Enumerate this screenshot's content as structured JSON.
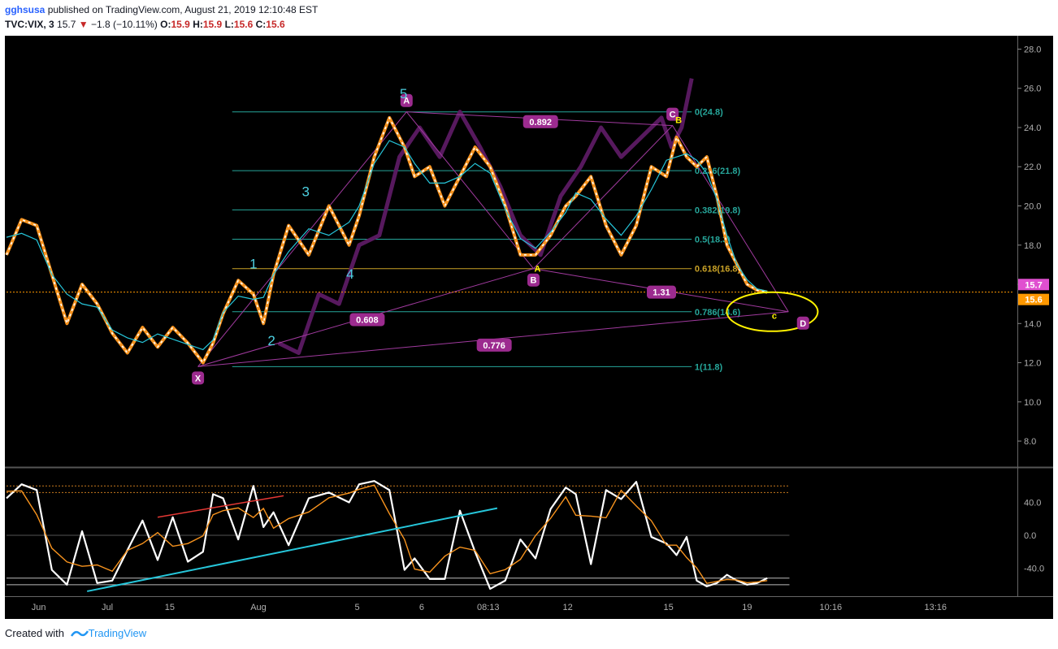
{
  "header": {
    "user": "gghsusa",
    "published": "published on TradingView.com, August 21, 2019 12:10:48 EST",
    "symbol": "TVC:VIX, 3",
    "last": "15.7",
    "change": "−1.8 (−10.11%)",
    "o_label": "O:",
    "o": "15.9",
    "h_label": "H:",
    "h": "15.9",
    "l_label": "L:",
    "l": "15.6",
    "c_label": "C:",
    "c": "15.6"
  },
  "footer": {
    "created": "Created with",
    "brand": "TradingView"
  },
  "colors": {
    "bg": "#000000",
    "up": "#ffffff",
    "down": "#f7931e",
    "ma": "#26c6da",
    "fib": "#26a69a",
    "fib618": "#c9a227",
    "projection": "#5c1a63",
    "pattern": "#a03a9e",
    "label_bg": "#9c2b8f",
    "wave": "#4dd0e1",
    "highlight": "#fff200",
    "price_tag": "#e04fd0",
    "close_tag": "#ff9800"
  },
  "chart_data": [
    {
      "type": "line",
      "name": "price",
      "title": "",
      "ylim": [
        6.8,
        28.6
      ],
      "yticks": [
        "28.0",
        "26.0",
        "24.0",
        "22.0",
        "20.0",
        "18.0",
        "16.0",
        "14.0",
        "12.0",
        "10.0",
        "8.0"
      ],
      "yticks_values": [
        28,
        26,
        24,
        22,
        20,
        18,
        16,
        14,
        12,
        10,
        8
      ],
      "xticks": [
        "Jun",
        "Jul",
        "15",
        "Aug",
        "5",
        "6",
        "08:13",
        "12",
        "15",
        "19",
        "10:16",
        "13:16"
      ],
      "xticks_pos": [
        0.032,
        0.1,
        0.162,
        0.25,
        0.348,
        0.412,
        0.478,
        0.557,
        0.657,
        0.735,
        0.818,
        0.922
      ],
      "x": [
        0.0,
        0.015,
        0.03,
        0.045,
        0.06,
        0.075,
        0.09,
        0.105,
        0.12,
        0.135,
        0.15,
        0.165,
        0.18,
        0.195,
        0.205,
        0.215,
        0.23,
        0.245,
        0.255,
        0.265,
        0.28,
        0.3,
        0.32,
        0.34,
        0.35,
        0.365,
        0.38,
        0.395,
        0.405,
        0.42,
        0.435,
        0.45,
        0.465,
        0.48,
        0.495,
        0.51,
        0.525,
        0.54,
        0.555,
        0.565,
        0.58,
        0.595,
        0.61,
        0.625,
        0.64,
        0.655,
        0.665,
        0.675,
        0.685,
        0.695,
        0.705,
        0.715,
        0.725,
        0.735,
        0.745,
        0.755
      ],
      "values": [
        17.5,
        19.3,
        19.0,
        16.5,
        14.0,
        16.0,
        15.0,
        13.5,
        12.5,
        13.8,
        12.8,
        13.8,
        13.0,
        12.0,
        13.0,
        14.5,
        16.2,
        15.5,
        14.0,
        16.5,
        19.0,
        17.5,
        20.0,
        18.0,
        19.5,
        22.5,
        24.5,
        23.0,
        21.5,
        22.0,
        20.0,
        21.5,
        23.0,
        22.0,
        20.0,
        17.5,
        17.5,
        18.5,
        20.0,
        20.5,
        21.5,
        19.0,
        17.5,
        19.0,
        22.0,
        21.5,
        23.5,
        22.5,
        22.0,
        22.5,
        20.5,
        18.0,
        17.0,
        16.0,
        15.7,
        15.6
      ],
      "projection_x": [
        0.27,
        0.29,
        0.31,
        0.33,
        0.35,
        0.37,
        0.39,
        0.41,
        0.43,
        0.45,
        0.47,
        0.49,
        0.51,
        0.53,
        0.55,
        0.57,
        0.59,
        0.61,
        0.63,
        0.65,
        0.66,
        0.67,
        0.68
      ],
      "projection_values": [
        13.0,
        12.5,
        15.5,
        15.0,
        18.0,
        18.5,
        22.5,
        24.0,
        22.5,
        24.8,
        23.0,
        21.0,
        18.5,
        17.5,
        20.5,
        22.0,
        24.0,
        22.5,
        23.5,
        24.5,
        23.0,
        24.0,
        26.5
      ],
      "fib_levels": [
        {
          "label": "1(11.8)",
          "value": 11.8
        },
        {
          "label": "0.786(14.6)",
          "value": 14.6
        },
        {
          "label": "0.618(16.8)",
          "value": 16.8
        },
        {
          "label": "0.5(18.3)",
          "value": 18.3
        },
        {
          "label": "0.382(19.8)",
          "value": 19.8
        },
        {
          "label": "0.236(21.8)",
          "value": 21.8
        },
        {
          "label": "0(24.8)",
          "value": 24.8
        }
      ],
      "harmonic_points": [
        {
          "label": "X",
          "x": 0.19,
          "value": 11.8
        },
        {
          "label": "A",
          "x": 0.397,
          "value": 24.8
        },
        {
          "label": "B",
          "x": 0.523,
          "value": 16.8
        },
        {
          "label": "C",
          "x": 0.661,
          "value": 24.1
        },
        {
          "label": "D",
          "x": 0.776,
          "value": 14.6
        }
      ],
      "abc_points": [
        {
          "label": "A",
          "x": 0.527,
          "value": 16.8
        },
        {
          "label": "B",
          "x": 0.667,
          "value": 24.1
        },
        {
          "label": "c",
          "x": 0.762,
          "value": 14.4
        }
      ],
      "ratios": [
        {
          "label": "0.892",
          "x": 0.53,
          "value": 24.3
        },
        {
          "label": "1.31",
          "x": 0.65,
          "value": 15.6
        },
        {
          "label": "0.608",
          "x": 0.358,
          "value": 14.2
        },
        {
          "label": "0.776",
          "x": 0.484,
          "value": 12.9
        }
      ],
      "waves": [
        {
          "label": "1",
          "x": 0.245,
          "value": 16.8
        },
        {
          "label": "2",
          "x": 0.263,
          "value": 12.9
        },
        {
          "label": "3",
          "x": 0.297,
          "value": 20.5
        },
        {
          "label": "4",
          "x": 0.341,
          "value": 16.3
        },
        {
          "label": "5",
          "x": 0.394,
          "value": 25.5
        }
      ],
      "last_price": "15.7",
      "last_value": 15.7,
      "close_price": "15.6",
      "close_value": 15.6
    },
    {
      "type": "line",
      "name": "oscillator",
      "ylim": [
        -72,
        78
      ],
      "yticks": [
        "40.0",
        "0.0",
        "-40.0"
      ],
      "yticks_values": [
        40,
        0,
        -40
      ],
      "levels": [
        60,
        52,
        -52,
        -60
      ],
      "x": [
        0.0,
        0.015,
        0.03,
        0.045,
        0.06,
        0.075,
        0.09,
        0.105,
        0.12,
        0.135,
        0.15,
        0.165,
        0.18,
        0.195,
        0.205,
        0.215,
        0.23,
        0.245,
        0.255,
        0.265,
        0.28,
        0.3,
        0.32,
        0.34,
        0.35,
        0.365,
        0.38,
        0.395,
        0.405,
        0.42,
        0.435,
        0.45,
        0.465,
        0.48,
        0.495,
        0.51,
        0.525,
        0.54,
        0.555,
        0.565,
        0.58,
        0.595,
        0.61,
        0.625,
        0.64,
        0.655,
        0.665,
        0.675,
        0.685,
        0.695,
        0.705,
        0.715,
        0.725,
        0.735,
        0.745,
        0.755
      ],
      "values": [
        45,
        62,
        55,
        -42,
        -60,
        5,
        -58,
        -55,
        -18,
        18,
        -30,
        22,
        -32,
        -20,
        50,
        45,
        -5,
        60,
        10,
        28,
        -12,
        45,
        52,
        40,
        62,
        66,
        55,
        -42,
        -28,
        -53,
        -53,
        30,
        -20,
        -65,
        -55,
        -5,
        -28,
        32,
        58,
        50,
        -35,
        55,
        44,
        65,
        -2,
        -10,
        -24,
        -2,
        -55,
        -62,
        -58,
        -48,
        -55,
        -60,
        -58,
        -52
      ],
      "trend_support": {
        "x": [
          0.08,
          0.487
        ],
        "values": [
          -68,
          33
        ]
      },
      "trend_resist": {
        "x": [
          0.15,
          0.275
        ],
        "values": [
          22,
          48
        ]
      }
    }
  ]
}
